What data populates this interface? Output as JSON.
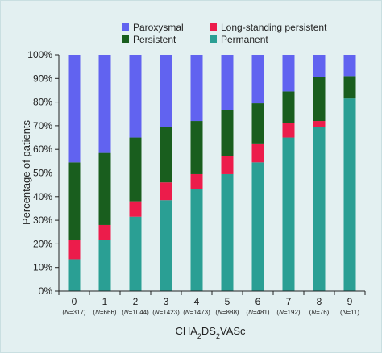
{
  "chart_data": {
    "type": "bar",
    "stacked": true,
    "percent_stacked": true,
    "xlabel": "CHA2DS2VASc",
    "xlabel_parts": {
      "base1": "CHA",
      "sub1": "2",
      "base2": "DS",
      "sub2": "2",
      "base3": "VASc"
    },
    "ylabel": "Percentage of patients",
    "ylim": [
      0,
      100
    ],
    "yticks": [
      "0%",
      "10%",
      "20%",
      "30%",
      "40%",
      "50%",
      "60%",
      "70%",
      "80%",
      "90%",
      "100%"
    ],
    "categories": [
      "0",
      "1",
      "2",
      "3",
      "4",
      "5",
      "6",
      "7",
      "8",
      "9"
    ],
    "n_labels": [
      {
        "open": "(",
        "n": "N",
        "eq": "=317)"
      },
      {
        "open": "(",
        "n": "N",
        "eq": "=666)"
      },
      {
        "open": "(",
        "n": "N",
        "eq": "=1044)"
      },
      {
        "open": "(",
        "n": "N",
        "eq": "=1423)"
      },
      {
        "open": "(",
        "n": "N",
        "eq": "=1473)"
      },
      {
        "open": "(",
        "n": "N",
        "eq": "=888)"
      },
      {
        "open": "(",
        "n": "N",
        "eq": "=481)"
      },
      {
        "open": "(",
        "n": "N",
        "eq": "=192)"
      },
      {
        "open": "(",
        "n": "N",
        "eq": "=76)"
      },
      {
        "open": "(",
        "n": "N",
        "eq": "=11)"
      }
    ],
    "legend_placement": "top",
    "legend_order": [
      "Paroxysmal",
      "Long-standing persistent",
      "Persistent",
      "Permanent"
    ],
    "series": [
      {
        "name": "Permanent",
        "color": "#2a9f94",
        "values": [
          13.5,
          21.5,
          31.5,
          38.5,
          43.0,
          49.5,
          54.5,
          65.0,
          69.5,
          81.5
        ]
      },
      {
        "name": "Long-standing persistent",
        "color": "#ec1c4b",
        "values": [
          8.0,
          6.5,
          6.5,
          7.5,
          6.5,
          7.5,
          8.0,
          6.0,
          2.5,
          0.0
        ]
      },
      {
        "name": "Persistent",
        "color": "#195e1e",
        "values": [
          33.0,
          30.5,
          27.0,
          23.5,
          22.5,
          19.5,
          17.0,
          13.5,
          18.5,
          9.5
        ]
      },
      {
        "name": "Paroxysmal",
        "color": "#6163f0",
        "values": [
          45.5,
          41.5,
          35.0,
          30.5,
          28.0,
          23.5,
          20.5,
          15.5,
          9.5,
          9.0
        ]
      }
    ],
    "grid": false
  }
}
